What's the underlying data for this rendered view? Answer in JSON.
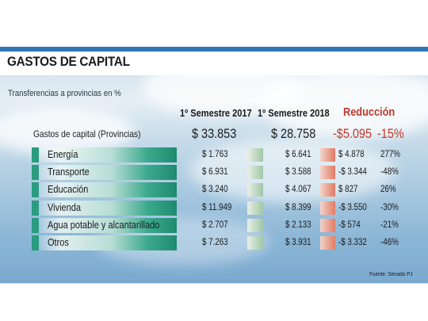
{
  "header": {
    "title": "GASTOS DE CAPITAL",
    "subtitle": "Transferencias a provincias en %",
    "source": "Fuente: Senado PJ"
  },
  "columns": {
    "sem2017": "1º Semestre 2017",
    "sem2018": "1º Semestre 2018",
    "reduction": "Reducción"
  },
  "totals": {
    "label": "Gastos de capital (Provincias)",
    "v2017": "$ 33.853",
    "v2018": "$ 28.758",
    "reduction_amount": "-$5.095",
    "reduction_pct": "-15%"
  },
  "chart_data": {
    "type": "table",
    "title": "GASTOS DE CAPITAL",
    "subtitle": "Transferencias a provincias en %",
    "columns": [
      "1º Semestre 2017",
      "1º Semestre 2018",
      "Reducción",
      ""
    ],
    "rows": [
      {
        "label": "Energía",
        "v2017": "$ 1.763",
        "v2018": "$ 6.641",
        "diff": "$ 4.878",
        "pct": "277%"
      },
      {
        "label": "Transporte",
        "v2017": "$ 6.931",
        "v2018": "$ 3.588",
        "diff": "-$ 3.344",
        "pct": "-48%"
      },
      {
        "label": "Educación",
        "v2017": "$ 3.240",
        "v2018": "$ 4.067",
        "diff": "$ 827",
        "pct": "26%"
      },
      {
        "label": "Vivienda",
        "v2017": "$ 11.949",
        "v2018": "$ 8.399",
        "diff": "-$ 3.550",
        "pct": "-30%"
      },
      {
        "label": "Agua potable y alcantarillado",
        "v2017": "$ 2.707",
        "v2018": "$ 2.133",
        "diff": "-$ 574",
        "pct": "-21%"
      },
      {
        "label": "Otros",
        "v2017": "$ 7.263",
        "v2018": "$ 3.931",
        "diff": "-$ 3.332",
        "pct": "-46%"
      }
    ]
  },
  "colors": {
    "accent_blue": "#2e77b7",
    "bar_green": "#1e8a6e",
    "reduction_red": "#c0392b"
  }
}
